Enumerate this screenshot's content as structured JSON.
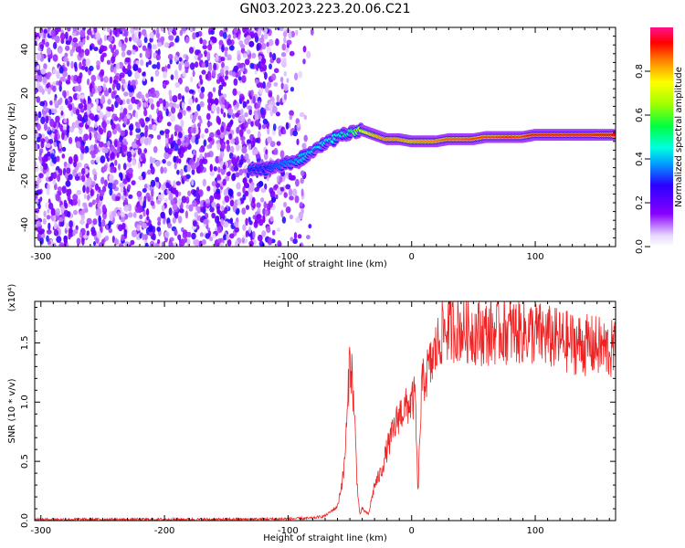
{
  "title": "GN03.2023.223.20.06.C21",
  "colors": {
    "snr_line": "#ee2222",
    "frame": "#000000",
    "background": "#ffffff"
  },
  "chart_data": [
    {
      "type": "heatmap",
      "xlabel": "Height of straight line (km)",
      "ylabel": "Frequency (Hz)",
      "xlim": [
        -305,
        165
      ],
      "ylim": [
        -50,
        50
      ],
      "x_ticks": [
        -300,
        -200,
        -100,
        0,
        100
      ],
      "x_tick_labels": [
        "-300",
        "-200",
        "-100",
        "0",
        "100"
      ],
      "y_ticks": [
        -40,
        -20,
        0,
        20,
        40
      ],
      "y_tick_labels": [
        "-40",
        "-20",
        "0",
        "20",
        "40"
      ],
      "colorbar": {
        "label": "Normalized spectral amplitude",
        "range": [
          0,
          1
        ],
        "ticks": [
          0.0,
          0.2,
          0.4,
          0.6,
          0.8
        ],
        "tick_labels": [
          "0.0",
          "0.2",
          "0.4",
          "0.6",
          "0.8"
        ]
      },
      "noise_region_x": [
        -305,
        -80
      ],
      "signal_track": [
        {
          "x": -130,
          "y": -14,
          "amp": 0.28
        },
        {
          "x": -120,
          "y": -15,
          "amp": 0.25
        },
        {
          "x": -110,
          "y": -14,
          "amp": 0.32
        },
        {
          "x": -100,
          "y": -12,
          "amp": 0.36
        },
        {
          "x": -90,
          "y": -10,
          "amp": 0.4
        },
        {
          "x": -80,
          "y": -7,
          "amp": 0.42
        },
        {
          "x": -70,
          "y": -3,
          "amp": 0.45
        },
        {
          "x": -60,
          "y": 0,
          "amp": 0.45
        },
        {
          "x": -50,
          "y": 2,
          "amp": 0.5
        },
        {
          "x": -40,
          "y": 3,
          "amp": 0.72
        },
        {
          "x": -30,
          "y": 1,
          "amp": 0.8
        },
        {
          "x": -20,
          "y": -1,
          "amp": 0.85
        },
        {
          "x": -10,
          "y": -1,
          "amp": 0.85
        },
        {
          "x": 0,
          "y": -2,
          "amp": 0.82
        },
        {
          "x": 10,
          "y": -2,
          "amp": 0.85
        },
        {
          "x": 20,
          "y": -2,
          "amp": 0.85
        },
        {
          "x": 30,
          "y": -1,
          "amp": 0.88
        },
        {
          "x": 40,
          "y": -1,
          "amp": 0.88
        },
        {
          "x": 50,
          "y": -1,
          "amp": 0.9
        },
        {
          "x": 60,
          "y": 0,
          "amp": 0.9
        },
        {
          "x": 70,
          "y": 0,
          "amp": 0.9
        },
        {
          "x": 80,
          "y": 0,
          "amp": 0.92
        },
        {
          "x": 90,
          "y": 0,
          "amp": 0.9
        },
        {
          "x": 100,
          "y": 1,
          "amp": 0.95
        },
        {
          "x": 110,
          "y": 1,
          "amp": 0.95
        },
        {
          "x": 120,
          "y": 1,
          "amp": 0.95
        },
        {
          "x": 130,
          "y": 1,
          "amp": 0.95
        },
        {
          "x": 140,
          "y": 1,
          "amp": 0.95
        },
        {
          "x": 150,
          "y": 1,
          "amp": 0.95
        },
        {
          "x": 165,
          "y": 1,
          "amp": 0.95
        }
      ]
    },
    {
      "type": "line",
      "xlabel": "Height of straight line (km)",
      "ylabel": "SNR (10 * v/v)",
      "y_scale_label": "(x10⁴)",
      "xlim": [
        -305,
        165
      ],
      "ylim": [
        0,
        1.85
      ],
      "x_ticks": [
        -300,
        -200,
        -100,
        0,
        100
      ],
      "x_tick_labels": [
        "-300",
        "-200",
        "-100",
        "0",
        "100"
      ],
      "y_ticks": [
        0.0,
        0.5,
        1.0,
        1.5
      ],
      "y_tick_labels": [
        "0.0",
        "0.5",
        "1.0",
        "1.5"
      ],
      "series": [
        {
          "x": [
            -305,
            -250,
            -200,
            -150,
            -100,
            -80,
            -70,
            -60,
            -55,
            -52,
            -50,
            -48,
            -46,
            -44,
            -42,
            -40,
            -35,
            -30,
            -25,
            -20,
            -15,
            -10,
            -5,
            0,
            3,
            5,
            8,
            10,
            15,
            20,
            25,
            30,
            40,
            50,
            60,
            70,
            80,
            90,
            100,
            110,
            120,
            130,
            140,
            150,
            165
          ],
          "y": [
            0.01,
            0.01,
            0.01,
            0.01,
            0.015,
            0.02,
            0.04,
            0.12,
            0.4,
            0.9,
            1.4,
            1.2,
            0.8,
            0.3,
            0.05,
            0.1,
            0.05,
            0.3,
            0.4,
            0.6,
            0.75,
            0.9,
            0.95,
            1.0,
            1.05,
            0.2,
            1.1,
            1.2,
            1.3,
            1.45,
            1.6,
            1.62,
            1.62,
            1.6,
            1.58,
            1.6,
            1.6,
            1.6,
            1.58,
            1.55,
            1.52,
            1.5,
            1.48,
            1.47,
            1.43
          ]
        }
      ]
    }
  ]
}
